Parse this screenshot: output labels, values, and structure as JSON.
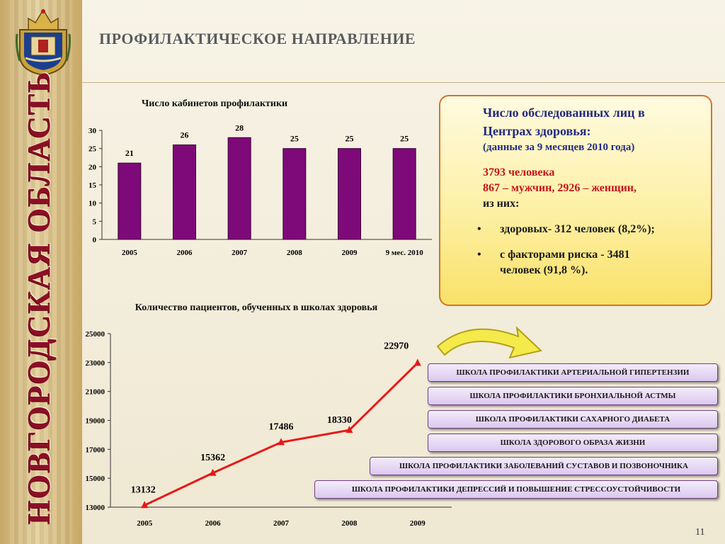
{
  "header": {
    "title": "ПРОФИЛАКТИЧЕСКОЕ НАПРАВЛЕНИЕ"
  },
  "sidebar": {
    "region_label": "НОВГОРОДСКАЯ ОБЛАСТЬ",
    "emblem_icon": "coat-of-arms-icon"
  },
  "colors": {
    "bar": "#7d0a78",
    "line": "#e81818",
    "accent": "#8b0f26",
    "info_text": "#232a80",
    "info_highlight": "#c4141b"
  },
  "chart_data": [
    {
      "type": "bar",
      "title": "Число кабинетов профилактики",
      "categories": [
        "2005",
        "2006",
        "2007",
        "2008",
        "2009",
        "9 мес. 2010"
      ],
      "values": [
        21,
        26,
        28,
        25,
        25,
        25
      ],
      "ylim": [
        0,
        30
      ],
      "yticks": [
        0,
        5,
        10,
        15,
        20,
        25,
        30
      ],
      "grid": false
    },
    {
      "type": "line",
      "title": "Количество пациентов, обученных в школах здоровья",
      "categories": [
        "2005",
        "2006",
        "2007",
        "2008",
        "2009"
      ],
      "values": [
        13132,
        15362,
        17486,
        18330,
        22970
      ],
      "ylim": [
        13000,
        25000
      ],
      "yticks": [
        13000,
        15000,
        17000,
        19000,
        21000,
        23000,
        25000
      ],
      "grid": false
    }
  ],
  "info": {
    "heading_line1": "Число обследованных лиц в",
    "heading_line2": "Центрах здоровья:",
    "sub": "(данные за 9 месяцев 2010 года)",
    "total": "3793 человека",
    "gender": "867 – мужчин,  2926 – женщин,",
    "of_them": "из них:",
    "bullet_char": "•",
    "bullet1": "здоровых- 312 человек (8,2%);",
    "bullet2_line1": "с факторами риска - 3481",
    "bullet2_line2": "человек (91,8 %)."
  },
  "schools": [
    "ШКОЛА ПРОФИЛАКТИКИ АРТЕРИАЛЬНОЙ ГИПЕРТЕНЗИИ",
    "ШКОЛА ПРОФИЛАКТИКИ БРОНХИАЛЬНОЙ АСТМЫ",
    "ШКОЛА ПРОФИЛАКТИКИ САХАРНОГО ДИАБЕТА",
    "ШКОЛА ЗДОРОВОГО ОБРАЗА ЖИЗНИ",
    "ШКОЛА ПРОФИЛАКТИКИ ЗАБОЛЕВАНИЙ СУСТАВОВ И ПОЗВОНОЧНИКА",
    "ШКОЛА ПРОФИЛАКТИКИ ДЕПРЕССИЙ И ПОВЫШЕНИЕ СТРЕССОУСТОЙЧИВОСТИ"
  ],
  "page_number": "11"
}
